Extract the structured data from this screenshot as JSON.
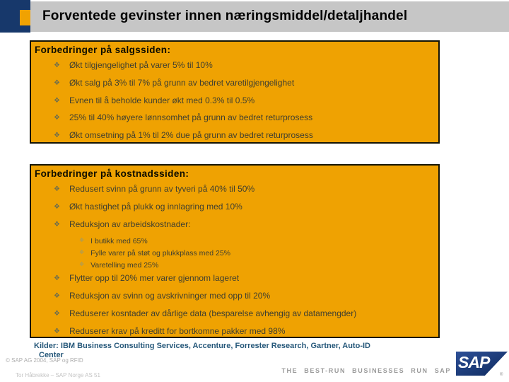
{
  "header": {
    "title": "Forventede gevinster innen næringsmiddel/detaljhandel"
  },
  "glyphs": {
    "bullet": "❖"
  },
  "colors": {
    "box_fill": "#EFA202",
    "title_band": "#C6C6C6",
    "navy_accent": "#17386B",
    "sources_text": "#26587A",
    "sap_logo_blue": "#15336C"
  },
  "boxes": [
    {
      "heading": "Forbedringer på salgssiden:",
      "bullets": [
        "Økt tilgjengelighet på varer 5% til 10%",
        "Økt salg på 3% til 7% på grunn av bedret varetilgjengelighet",
        "Evnen til å beholde kunder økt med 0.3% til 0.5%",
        "25% til 40% høyere lønnsomhet på grunn av bedret returprosess",
        "Økt omsetning på 1% til 2% due på grunn av bedret returprosess"
      ]
    },
    {
      "heading": "Forbedringer på kostnadssiden:",
      "bullets": [
        "Redusert svinn på grunn av tyveri på 40% til 50%",
        "Økt hastighet på plukk og innlagring med 10%",
        "Reduksjon av arbeidskostnader:"
      ],
      "sub_bullets": [
        "I butikk med  65%",
        "Fylle varer på støt og plukkplass med  25%",
        "Varetelling med 25%"
      ],
      "bullets2": [
        "Flytter opp til 20% mer varer gjennom lageret",
        "Reduksjon av svinn og avskrivninger med opp til 20%",
        "Reduserer kosntader av dårlige data (besparelse avhengig av datamengder)",
        "Reduserer krav på kreditt for bortkomne pakker med 98%"
      ]
    }
  ],
  "sources": {
    "line1": "Kilder:  IBM Business Consulting Services, Accenture, Forrester Research, Gartner, Auto-ID",
    "line2": "Center"
  },
  "footer": {
    "copyright": "© SAP AG 2004, SAP og RFID",
    "author": "Tor Håbrekke – SAP Norge AS 51",
    "tagline": "THE BEST-RUN BUSINESSES RUN SAP",
    "logo_text": "SAP",
    "logo_registered": "®"
  }
}
